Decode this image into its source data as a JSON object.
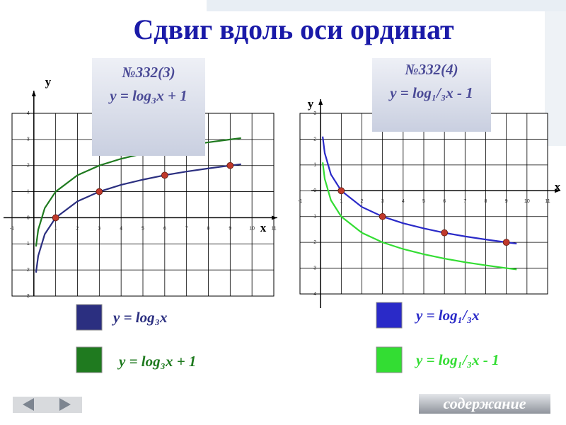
{
  "title": "Сдвиг вдоль оси ординат",
  "chart_data": [
    {
      "type": "line",
      "annotation": {
        "number": "№332(3)",
        "formula": "y = log₃x + 1"
      },
      "xlabel": "x",
      "ylabel": "y",
      "grid": true,
      "xlim": [
        -1,
        11
      ],
      "ylim": [
        -3,
        4
      ],
      "xticks": [
        -1,
        1,
        2,
        3,
        4,
        5,
        6,
        7,
        8,
        9,
        10,
        11
      ],
      "yticks": [
        {
          "value": -3,
          "label": "3"
        },
        {
          "value": -2,
          "label": "2"
        },
        {
          "value": -1,
          "label": "1"
        },
        0,
        1,
        2,
        3,
        4
      ],
      "x": [
        0.1,
        0.2,
        0.5,
        1,
        2,
        3,
        4,
        5,
        6,
        7,
        8,
        9,
        9.5
      ],
      "series": [
        {
          "name": "y = log₃x",
          "color": "#2b2f80",
          "values": [
            -2.1,
            -1.46,
            -0.63,
            0,
            0.63,
            1,
            1.26,
            1.46,
            1.63,
            1.77,
            1.89,
            2,
            2.05
          ]
        },
        {
          "name": "y = log₃x + 1",
          "color": "#1f7a1f",
          "values": [
            -1.1,
            -0.46,
            0.37,
            1,
            1.63,
            2,
            2.26,
            2.46,
            2.63,
            2.77,
            2.89,
            3,
            3.05
          ]
        }
      ],
      "markers": {
        "color": "#c0392b",
        "x": [
          1,
          3,
          6,
          9
        ],
        "values": [
          0,
          1,
          1.63,
          2
        ]
      }
    },
    {
      "type": "line",
      "annotation": {
        "number": "№332(4)",
        "formula": "y = log₁/₃x - 1"
      },
      "xlabel": "x",
      "ylabel": "y",
      "grid": true,
      "xlim": [
        -1,
        11
      ],
      "ylim": [
        -4,
        3
      ],
      "xticks": [
        -1,
        1,
        2,
        3,
        4,
        5,
        6,
        7,
        8,
        9,
        10,
        11
      ],
      "yticks": [
        {
          "value": -4,
          "label": "4"
        },
        {
          "value": -3,
          "label": "3"
        },
        {
          "value": -2,
          "label": "2"
        },
        {
          "value": -1,
          "label": "1"
        },
        0,
        1,
        2,
        3
      ],
      "x": [
        0.1,
        0.2,
        0.5,
        1,
        2,
        3,
        4,
        5,
        6,
        7,
        8,
        9,
        9.5
      ],
      "series": [
        {
          "name": "y = log₁/₃x",
          "color": "#2a2ac8",
          "values": [
            2.1,
            1.46,
            0.63,
            0,
            -0.63,
            -1,
            -1.26,
            -1.46,
            -1.63,
            -1.77,
            -1.89,
            -2,
            -2.05
          ]
        },
        {
          "name": "y = log₁/₃x - 1",
          "color": "#33dd33",
          "values": [
            1.1,
            0.46,
            -0.37,
            -1,
            -1.63,
            -2,
            -2.26,
            -2.46,
            -2.63,
            -2.77,
            -2.89,
            -3,
            -3.05
          ]
        }
      ],
      "markers": {
        "color": "#c0392b",
        "x": [
          1,
          3,
          6,
          9
        ],
        "values": [
          0,
          -1,
          -1.63,
          -2
        ]
      }
    }
  ],
  "navigation": {
    "contents": "содержание"
  }
}
